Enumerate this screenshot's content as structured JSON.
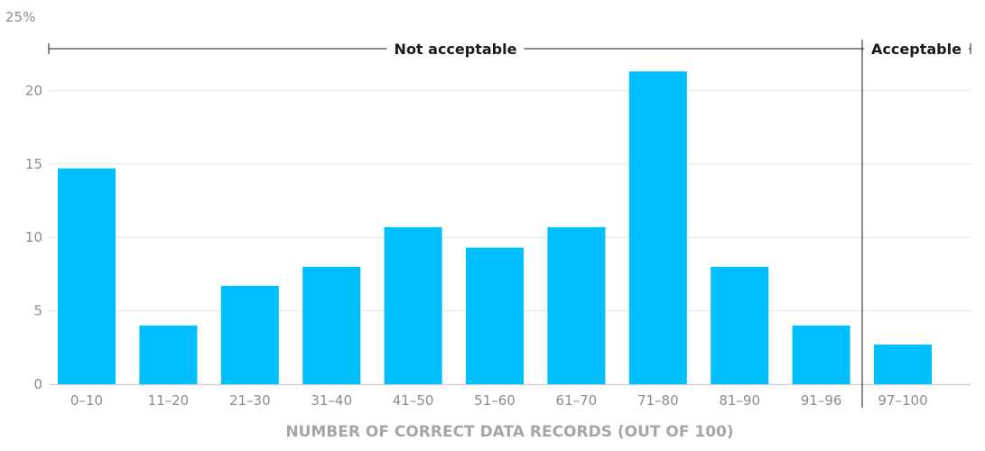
{
  "chart_data": {
    "type": "bar",
    "categories": [
      "0–10",
      "11–20",
      "21–30",
      "31–40",
      "41–50",
      "51–60",
      "61–70",
      "71–80",
      "81–90",
      "91–96",
      "97–100"
    ],
    "values": [
      14.7,
      4.0,
      6.7,
      8.0,
      10.7,
      9.3,
      10.7,
      21.3,
      8.0,
      4.0,
      2.7
    ],
    "xlabel": "NUMBER OF CORRECT DATA RECORDS (OUT OF 100)",
    "ylabel": "",
    "ylim": [
      0,
      25
    ],
    "y_ticks": [
      0,
      5,
      10,
      15,
      20,
      25
    ],
    "y_tick_labels": [
      "0",
      "5",
      "10",
      "15",
      "20",
      "25%"
    ],
    "grid": true,
    "colors": {
      "bar": "#00bfff",
      "grid": "#e6e6e6",
      "axis_text": "#8c8c8c",
      "bracket": "#1a1a1a"
    },
    "annotations": [
      {
        "label": "Not acceptable",
        "from_category": "0–10",
        "to_category": "91–96"
      },
      {
        "label": "Acceptable",
        "from_category": "97–100",
        "to_category": "97–100"
      }
    ]
  }
}
